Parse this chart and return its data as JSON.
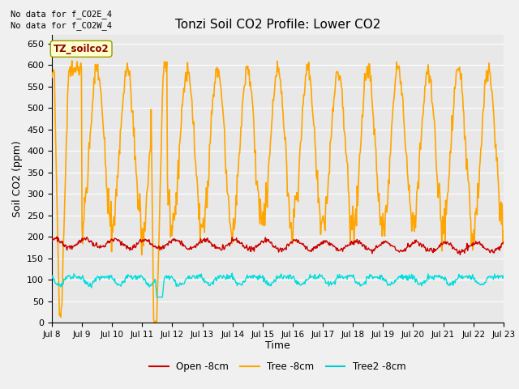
{
  "title": "Tonzi Soil CO2 Profile: Lower CO2",
  "ylabel": "Soil CO2 (ppm)",
  "xlabel": "Time",
  "ylim": [
    0,
    670
  ],
  "yticks": [
    0,
    50,
    100,
    150,
    200,
    250,
    300,
    350,
    400,
    450,
    500,
    550,
    600,
    650
  ],
  "no_data_text_1": "No data for f_CO2E_4",
  "no_data_text_2": "No data for f_CO2W_4",
  "legend_box_label": "TZ_soilco2",
  "legend_box_color": "#ffffcc",
  "legend_box_edge": "#999900",
  "bg_color": "#e8e8e8",
  "grid_color": "#ffffff",
  "fig_bg_color": "#f0f0f0",
  "line_colors": {
    "open": "#cc0000",
    "tree": "#FFA500",
    "tree2": "#00DDDD"
  },
  "line_widths": {
    "open": 1.0,
    "tree": 1.2,
    "tree2": 1.0
  },
  "legend_entries": [
    {
      "label": "Open -8cm",
      "color": "#cc0000"
    },
    {
      "label": "Tree -8cm",
      "color": "#FFA500"
    },
    {
      "label": "Tree2 -8cm",
      "color": "#00CCCC"
    }
  ],
  "xstart_day": 8,
  "xend_day": 23,
  "points_per_day": 48,
  "title_fontsize": 11,
  "axis_fontsize": 9,
  "tick_fontsize": 8
}
